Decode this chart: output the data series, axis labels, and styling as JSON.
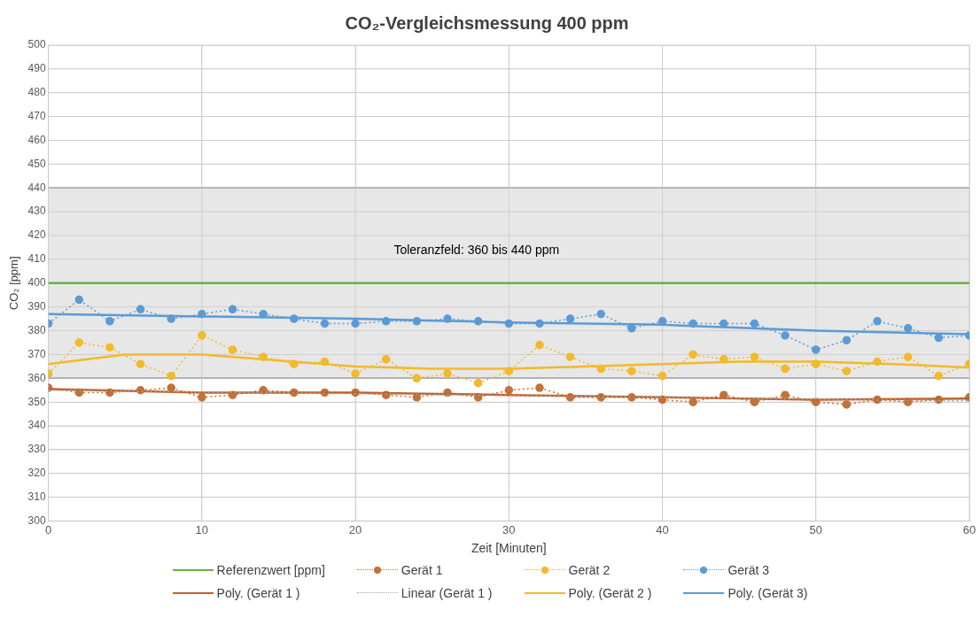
{
  "chart_data": {
    "type": "line",
    "title": "CO₂-Vergleichsmessung 400 ppm",
    "xlabel": "Zeit [Minuten]",
    "ylabel": "CO₂ [ppm]",
    "xlim": [
      0,
      60
    ],
    "xticks": [
      0,
      10,
      20,
      30,
      40,
      50,
      60
    ],
    "ylim": [
      300,
      500
    ],
    "yticks": [
      300,
      310,
      320,
      330,
      340,
      350,
      360,
      370,
      380,
      390,
      400,
      410,
      420,
      430,
      440,
      450,
      460,
      470,
      480,
      490,
      500
    ],
    "grid": true,
    "legend": "bottom",
    "bands": [
      {
        "axis": "y",
        "from": 360,
        "to": 440,
        "label": "Toleranzfeld: 360 bis 440 ppm",
        "color": "#e7e7e7"
      }
    ],
    "series": [
      {
        "name": "Referenzwert [ppm]",
        "type": "line",
        "color": "#70ad47",
        "line_style": "solid",
        "marker": "none",
        "x": [
          0,
          60
        ],
        "values": [
          400,
          400
        ]
      },
      {
        "name": "Gerät 1",
        "type": "line",
        "color": "#c0733a",
        "line_style": "dotted",
        "marker": "circle",
        "x": [
          0,
          2,
          4,
          6,
          8,
          10,
          12,
          14,
          16,
          18,
          20,
          22,
          24,
          26,
          28,
          30,
          32,
          34,
          36,
          38,
          40,
          42,
          44,
          46,
          48,
          50,
          52,
          54,
          56,
          58,
          60
        ],
        "values": [
          356,
          354,
          354,
          355,
          356,
          352,
          353,
          355,
          354,
          354,
          354,
          353,
          352,
          354,
          352,
          355,
          356,
          352,
          352,
          352,
          351,
          350,
          353,
          350,
          353,
          350,
          349,
          351,
          350,
          351,
          352
        ]
      },
      {
        "name": "Gerät 2",
        "type": "line",
        "color": "#f2b92a",
        "line_style": "dotted",
        "marker": "circle",
        "x": [
          0,
          2,
          4,
          6,
          8,
          10,
          12,
          14,
          16,
          18,
          20,
          22,
          24,
          26,
          28,
          30,
          32,
          34,
          36,
          38,
          40,
          42,
          44,
          46,
          48,
          50,
          52,
          54,
          56,
          58,
          60
        ],
        "values": [
          362,
          375,
          373,
          366,
          361,
          378,
          372,
          369,
          366,
          367,
          362,
          368,
          360,
          362,
          358,
          363,
          374,
          369,
          364,
          363,
          361,
          370,
          368,
          369,
          364,
          366,
          363,
          367,
          369,
          361,
          366
        ]
      },
      {
        "name": "Gerät 3",
        "type": "line",
        "color": "#5b9bd5",
        "line_style": "dotted",
        "marker": "circle",
        "x": [
          0,
          2,
          4,
          6,
          8,
          10,
          12,
          14,
          16,
          18,
          20,
          22,
          24,
          26,
          28,
          30,
          32,
          34,
          36,
          38,
          40,
          42,
          44,
          46,
          48,
          50,
          52,
          54,
          56,
          58,
          60
        ],
        "values": [
          383,
          393,
          384,
          389,
          385,
          387,
          389,
          387,
          385,
          383,
          383,
          384,
          384,
          385,
          384,
          383,
          383,
          385,
          387,
          381,
          384,
          383,
          383,
          383,
          378,
          372,
          376,
          384,
          381,
          377,
          378
        ]
      },
      {
        "name": "Poly. (Gerät 1 )",
        "type": "line",
        "color": "#c0632a",
        "line_style": "solid",
        "marker": "none",
        "x": [
          0,
          10,
          20,
          30,
          40,
          50,
          60
        ],
        "values": [
          355.5,
          354,
          354,
          353,
          352,
          351,
          351.5
        ]
      },
      {
        "name": "Linear (Gerät 1 )",
        "type": "line",
        "color": "#a5a5a5",
        "line_style": "dotted",
        "marker": "none",
        "x": [
          0,
          60
        ],
        "values": [
          355,
          350.5
        ]
      },
      {
        "name": "Poly. (Gerät 2 )",
        "type": "line",
        "color": "#f2b92a",
        "line_style": "solid",
        "marker": "none",
        "x": [
          0,
          5,
          10,
          15,
          20,
          25,
          30,
          35,
          40,
          45,
          50,
          55,
          60
        ],
        "values": [
          366,
          370,
          370,
          367.5,
          365,
          364,
          364,
          365,
          366,
          367,
          367,
          366,
          364.5
        ]
      },
      {
        "name": "Poly. (Gerät 3)",
        "type": "line",
        "color": "#5b9bd5",
        "line_style": "solid",
        "marker": "none",
        "x": [
          0,
          10,
          20,
          30,
          40,
          50,
          60
        ],
        "values": [
          387,
          386,
          385,
          383.5,
          382.5,
          380,
          378.5
        ]
      }
    ]
  }
}
